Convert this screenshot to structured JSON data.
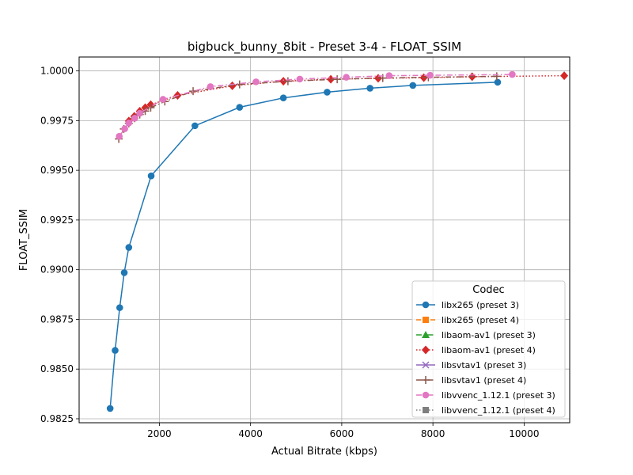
{
  "chart_data": {
    "type": "line",
    "title": "bigbuck_bunny_8bit - Preset 3-4 - FLOAT_SSIM",
    "xlabel": "Actual Bitrate (kbps)",
    "ylabel": "FLOAT_SSIM",
    "xlim": [
      240,
      11000
    ],
    "ylim": [
      0.9823,
      1.0007
    ],
    "xticks": [
      2000,
      4000,
      6000,
      8000,
      10000
    ],
    "xtick_labels": [
      "2000",
      "4000",
      "6000",
      "8000",
      "10000"
    ],
    "yticks": [
      0.9825,
      0.985,
      0.9875,
      0.99,
      0.9925,
      0.995,
      0.9975,
      1.0
    ],
    "ytick_labels": [
      "0.9825",
      "0.9850",
      "0.9875",
      "0.9900",
      "0.9925",
      "0.9950",
      "0.9975",
      "1.0000"
    ],
    "grid": true,
    "legend": {
      "title": "Codec",
      "placement": "lower-right"
    },
    "series": [
      {
        "name": "libx265 (preset 3)",
        "color": "#1f77b4",
        "line": "solid",
        "marker": "circle",
        "points": [
          [
            920,
            0.98302
          ],
          [
            1030,
            0.98594
          ],
          [
            1130,
            0.98809
          ],
          [
            1230,
            0.98985
          ],
          [
            1330,
            0.99112
          ],
          [
            1820,
            0.99472
          ],
          [
            2780,
            0.99724
          ],
          [
            3760,
            0.99817
          ],
          [
            4720,
            0.99864
          ],
          [
            5680,
            0.99893
          ],
          [
            6620,
            0.99913
          ],
          [
            7560,
            0.99927
          ],
          [
            9420,
            0.99943
          ]
        ]
      },
      {
        "name": "libx265 (preset 4)",
        "color": "#ff7f0e",
        "line": "dashed",
        "marker": "square",
        "points": []
      },
      {
        "name": "libaom-av1 (preset 3)",
        "color": "#2ca02c",
        "line": "dashdot",
        "marker": "triangle",
        "points": []
      },
      {
        "name": "libaom-av1 (preset 4)",
        "color": "#d62728",
        "line": "dotted",
        "marker": "diamond",
        "points": [
          [
            1330,
            0.99748
          ],
          [
            1450,
            0.99772
          ],
          [
            1570,
            0.99797
          ],
          [
            1690,
            0.99815
          ],
          [
            1810,
            0.9983
          ],
          [
            2400,
            0.99877
          ],
          [
            3600,
            0.99925
          ],
          [
            4720,
            0.99948
          ],
          [
            5760,
            0.99958
          ],
          [
            6800,
            0.99963
          ],
          [
            7800,
            0.99966
          ],
          [
            8860,
            0.99971
          ],
          [
            10880,
            0.99976
          ]
        ]
      },
      {
        "name": "libsvtav1 (preset 3)",
        "color": "#9467bd",
        "line": "solid",
        "marker": "x",
        "points": []
      },
      {
        "name": "libsvtav1 (preset 4)",
        "color": "#8c564b",
        "line": "dashdot",
        "marker": "plus",
        "points": [
          [
            1110,
            0.99658
          ],
          [
            1220,
            0.99708
          ],
          [
            1330,
            0.99736
          ],
          [
            1450,
            0.99762
          ],
          [
            1570,
            0.99781
          ],
          [
            1690,
            0.99798
          ],
          [
            1810,
            0.99815
          ],
          [
            2120,
            0.99846
          ],
          [
            2740,
            0.99898
          ],
          [
            3760,
            0.99932
          ],
          [
            4820,
            0.99948
          ],
          [
            5900,
            0.99958
          ],
          [
            6900,
            0.99964
          ],
          [
            7900,
            0.99968
          ],
          [
            9400,
            0.99973
          ]
        ]
      },
      {
        "name": "libvvenc_1.12.1 (preset 3)",
        "color": "#e377c2",
        "line": "dashdot",
        "marker": "circle",
        "points": [
          [
            1120,
            0.99671
          ],
          [
            1240,
            0.99709
          ],
          [
            1330,
            0.99738
          ],
          [
            1460,
            0.99762
          ],
          [
            1570,
            0.99787
          ],
          [
            2080,
            0.99857
          ],
          [
            3120,
            0.99921
          ],
          [
            4120,
            0.99945
          ],
          [
            5080,
            0.99959
          ],
          [
            6100,
            0.99968
          ],
          [
            7040,
            0.99976
          ],
          [
            7940,
            0.99978
          ],
          [
            9740,
            0.99982
          ]
        ]
      },
      {
        "name": "libvvenc_1.12.1 (preset 4)",
        "color": "#7f7f7f",
        "line": "dotted",
        "marker": "square",
        "points": []
      }
    ]
  }
}
